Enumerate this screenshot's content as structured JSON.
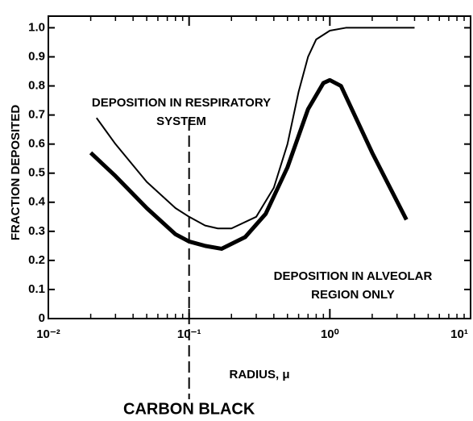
{
  "chart_data": {
    "type": "line",
    "xlabel": "RADIUS, μ",
    "ylabel": "FRACTION DEPOSITED",
    "xscale": "log",
    "xlim": [
      0.01,
      10
    ],
    "ylim": [
      0,
      1.04
    ],
    "xticks": [
      {
        "value": 0.01,
        "label": "10⁻²"
      },
      {
        "value": 0.1,
        "label": "10⁻¹"
      },
      {
        "value": 1,
        "label": "10⁰"
      },
      {
        "value": 10,
        "label": "10¹"
      }
    ],
    "yticks": [
      0,
      0.1,
      0.2,
      0.3,
      0.4,
      0.5,
      0.6,
      0.7,
      0.8,
      0.9,
      {
        "value": 1,
        "label": "1.0"
      }
    ],
    "minor_ticks": true,
    "series": [
      {
        "color": "#000000",
        "width": 2,
        "x": [
          0.022,
          0.03,
          0.05,
          0.08,
          0.1,
          0.13,
          0.16,
          0.2,
          0.3,
          0.4,
          0.5,
          0.6,
          0.7,
          0.8,
          1.0,
          1.3,
          2,
          4
        ],
        "values": [
          0.69,
          0.6,
          0.47,
          0.38,
          0.35,
          0.32,
          0.31,
          0.31,
          0.35,
          0.45,
          0.6,
          0.78,
          0.9,
          0.96,
          0.99,
          1.0,
          1.0,
          1.0
        ]
      },
      {
        "color": "#000000",
        "width": 5,
        "x": [
          0.02,
          0.03,
          0.05,
          0.08,
          0.1,
          0.13,
          0.17,
          0.25,
          0.35,
          0.5,
          0.7,
          0.9,
          1.0,
          1.2,
          2,
          3.5
        ],
        "values": [
          0.57,
          0.49,
          0.38,
          0.29,
          0.265,
          0.25,
          0.24,
          0.28,
          0.36,
          0.52,
          0.72,
          0.81,
          0.82,
          0.8,
          0.57,
          0.34
        ]
      }
    ],
    "annotations": [
      {
        "lines": [
          "DEPOSITION IN RESPIRATORY",
          "SYSTEM"
        ]
      },
      {
        "lines": [
          "DEPOSITION IN ALVEOLAR",
          "REGION ONLY"
        ]
      }
    ],
    "reference_line": {
      "x": 0.1,
      "label": "CARBON BLACK"
    }
  }
}
